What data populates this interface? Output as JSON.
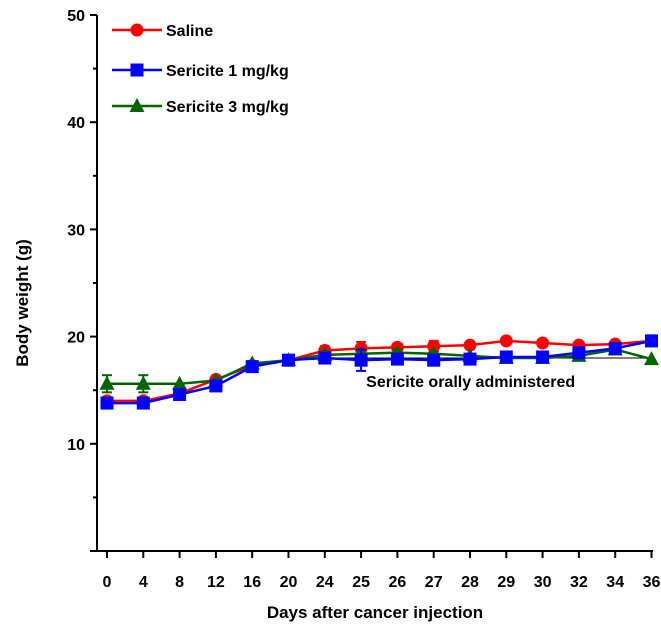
{
  "chart_data": {
    "type": "line",
    "xlabel": "Days after cancer injection",
    "ylabel": "Body weight (g)",
    "ylim": [
      0,
      50
    ],
    "yticks": [
      10,
      20,
      30,
      40,
      50
    ],
    "categories": [
      "0",
      "4",
      "8",
      "12",
      "16",
      "20",
      "24",
      "25",
      "26",
      "27",
      "28",
      "29",
      "30",
      "32",
      "34",
      "36"
    ],
    "legend_position": "top-left",
    "grid": false,
    "series": [
      {
        "name": "Saline",
        "color": "#ff0000",
        "marker": "circle",
        "values": [
          14.0,
          14.0,
          14.7,
          16.0,
          17.3,
          17.8,
          18.7,
          18.9,
          19.0,
          19.1,
          19.2,
          19.6,
          19.4,
          19.2,
          19.3,
          19.6
        ],
        "errors": [
          0,
          0,
          0,
          0,
          0,
          0,
          0.4,
          0.6,
          0.3,
          0.5,
          0,
          0,
          0,
          0.3,
          0,
          0
        ]
      },
      {
        "name": "Sericite 1 mg/kg",
        "color": "#0000ff",
        "marker": "square",
        "values": [
          13.8,
          13.8,
          14.6,
          15.4,
          17.2,
          17.8,
          18.0,
          17.8,
          17.9,
          17.8,
          17.9,
          18.1,
          18.1,
          18.5,
          18.9,
          19.6
        ],
        "errors": [
          0.5,
          0.5,
          0.3,
          0.3,
          0.3,
          0,
          0.4,
          1.0,
          0.4,
          0.3,
          0.3,
          0.3,
          0.2,
          0.3,
          0.3,
          0
        ]
      },
      {
        "name": "Sericite 3 mg/kg",
        "color": "#006400",
        "marker": "triangle",
        "values": [
          15.6,
          15.6,
          15.6,
          15.9,
          17.5,
          17.8,
          18.3,
          18.4,
          18.5,
          18.4,
          18.2,
          18.0,
          18.0,
          18.2,
          18.8,
          17.9
        ],
        "errors": [
          0.8,
          0.8,
          0,
          0,
          0,
          0,
          0.3,
          0.3,
          0.3,
          0.2,
          0,
          0,
          0,
          0,
          0,
          0
        ]
      }
    ],
    "annotation": {
      "text": "Sericite orally administered",
      "x_range": [
        "24",
        "36"
      ]
    }
  }
}
